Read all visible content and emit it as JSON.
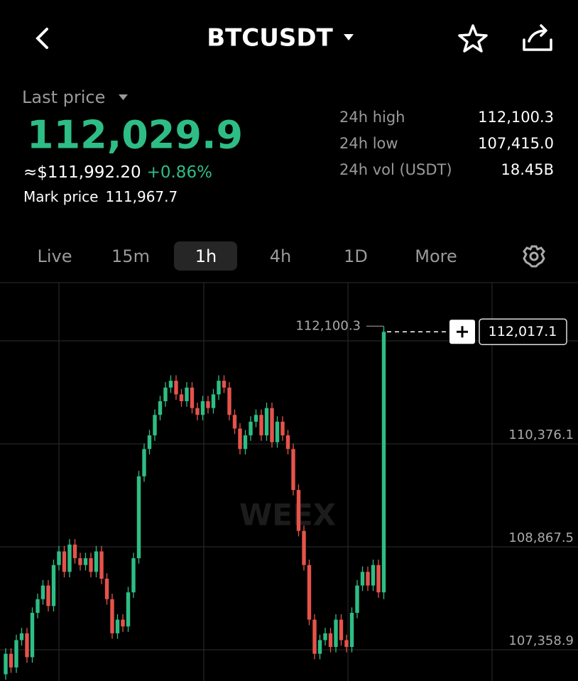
{
  "header": {
    "symbol": "BTCUSDT"
  },
  "ticker": {
    "last_price_label": "Last price",
    "last_price": "112,029.9",
    "usd_price": "≈$111,992.20",
    "change": "+0.86%",
    "mark_price_label": "Mark price",
    "mark_price": "111,967.7"
  },
  "stats": [
    {
      "label": "24h high",
      "value": "112,100.3"
    },
    {
      "label": "24h low",
      "value": "107,415.0"
    },
    {
      "label": "24h vol (USDT)",
      "value": "18.45B"
    }
  ],
  "intervals": [
    "Live",
    "15m",
    "1h",
    "4h",
    "1D",
    "More"
  ],
  "selected_interval": "1h",
  "chart_data": {
    "type": "candlestick",
    "watermark": "WEEX",
    "up_color": "#2ebd85",
    "down_color": "#e5534b",
    "ylim": [
      106901.2,
      112737.8
    ],
    "yticks": [
      {
        "value": 111884.7,
        "label": null
      },
      {
        "value": 110376.1,
        "label": "110,376.1"
      },
      {
        "value": 108867.5,
        "label": "108,867.5"
      },
      {
        "value": 107358.9,
        "label": "107,358.9"
      }
    ],
    "high_value": 112100.3,
    "high_label": "112,100.3",
    "last_value": 112017.1,
    "last_label": "112,017.1",
    "ohlc": [
      [
        107000,
        107380,
        106920,
        107300
      ],
      [
        107300,
        107380,
        107020,
        107100
      ],
      [
        107100,
        107580,
        107020,
        107500
      ],
      [
        107500,
        107680,
        107420,
        107600
      ],
      [
        107600,
        107680,
        107170,
        107250
      ],
      [
        107250,
        107980,
        107170,
        107900
      ],
      [
        107900,
        108180,
        107820,
        108100
      ],
      [
        108100,
        108380,
        108020,
        108300
      ],
      [
        108300,
        108380,
        107920,
        108000
      ],
      [
        108000,
        108680,
        107920,
        108600
      ],
      [
        108600,
        108880,
        108520,
        108800
      ],
      [
        108800,
        108880,
        108420,
        108500
      ],
      [
        108500,
        108980,
        108420,
        108900
      ],
      [
        108900,
        108980,
        108620,
        108700
      ],
      [
        108700,
        108780,
        108520,
        108600
      ],
      [
        108600,
        108780,
        108520,
        108700
      ],
      [
        108700,
        108780,
        108420,
        108500
      ],
      [
        108500,
        108880,
        108420,
        108800
      ],
      [
        108800,
        108880,
        108320,
        108400
      ],
      [
        108400,
        108480,
        108020,
        108100
      ],
      [
        108100,
        108180,
        107520,
        107600
      ],
      [
        107600,
        107880,
        107520,
        107800
      ],
      [
        107800,
        107880,
        107620,
        107700
      ],
      [
        107700,
        108280,
        107620,
        108200
      ],
      [
        108200,
        108780,
        108120,
        108700
      ],
      [
        108700,
        109980,
        108620,
        109900
      ],
      [
        109900,
        110380,
        109820,
        110300
      ],
      [
        110300,
        110580,
        110220,
        110500
      ],
      [
        110500,
        110880,
        110420,
        110800
      ],
      [
        110800,
        111080,
        110720,
        111000
      ],
      [
        111000,
        111280,
        110920,
        111200
      ],
      [
        111200,
        111380,
        111120,
        111300
      ],
      [
        111300,
        111380,
        111020,
        111100
      ],
      [
        111100,
        111180,
        110920,
        111000
      ],
      [
        111000,
        111280,
        110920,
        111200
      ],
      [
        111200,
        111280,
        110820,
        110900
      ],
      [
        110900,
        110980,
        110720,
        110800
      ],
      [
        110800,
        111080,
        110720,
        111000
      ],
      [
        111000,
        111080,
        110820,
        110900
      ],
      [
        110900,
        111180,
        110820,
        111100
      ],
      [
        111100,
        111380,
        111020,
        111300
      ],
      [
        111300,
        111380,
        111120,
        111200
      ],
      [
        111200,
        111280,
        110720,
        110800
      ],
      [
        110800,
        110880,
        110520,
        110600
      ],
      [
        110600,
        110680,
        110220,
        110300
      ],
      [
        110300,
        110580,
        110220,
        110500
      ],
      [
        110500,
        110780,
        110420,
        110700
      ],
      [
        110700,
        110880,
        110620,
        110800
      ],
      [
        110800,
        110880,
        110420,
        110500
      ],
      [
        110500,
        110980,
        110420,
        110900
      ],
      [
        110900,
        110980,
        110320,
        110400
      ],
      [
        110400,
        110780,
        110320,
        110700
      ],
      [
        110700,
        110780,
        110420,
        110500
      ],
      [
        110500,
        110580,
        110220,
        110300
      ],
      [
        110300,
        110380,
        109620,
        109700
      ],
      [
        109700,
        109780,
        109020,
        109100
      ],
      [
        109100,
        109180,
        108520,
        108600
      ],
      [
        108600,
        108680,
        107720,
        107800
      ],
      [
        107800,
        107880,
        107220,
        107300
      ],
      [
        107300,
        107580,
        107220,
        107500
      ],
      [
        107500,
        107680,
        107420,
        107600
      ],
      [
        107600,
        107680,
        107320,
        107400
      ],
      [
        107400,
        107880,
        107320,
        107800
      ],
      [
        107800,
        107880,
        107420,
        107500
      ],
      [
        107500,
        107580,
        107320,
        107400
      ],
      [
        107400,
        107980,
        107320,
        107900
      ],
      [
        107900,
        108380,
        107820,
        108300
      ],
      [
        108300,
        108580,
        108220,
        108500
      ],
      [
        108500,
        108580,
        108220,
        108300
      ],
      [
        108300,
        108680,
        108220,
        108600
      ],
      [
        108600,
        108680,
        108120,
        108200
      ],
      [
        108200,
        112100.3,
        108100,
        112017.1
      ]
    ]
  }
}
